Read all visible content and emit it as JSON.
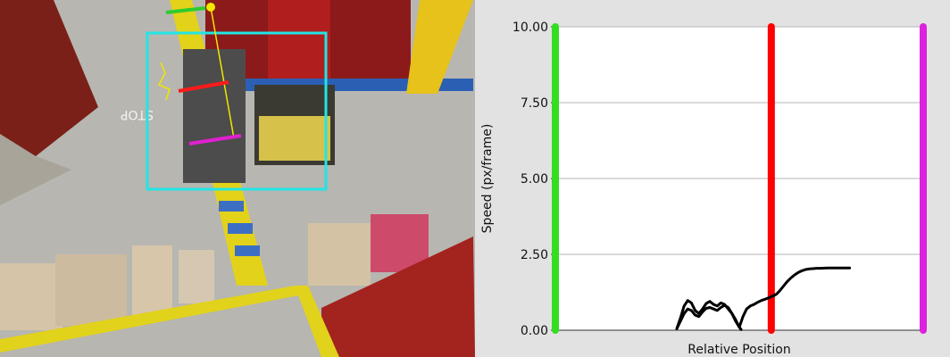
{
  "camera": {
    "floor_text": "STOP",
    "roi_color": "#22e5e5",
    "marker_colors": [
      "#2ecc2e",
      "#ff1a1a",
      "#e020d0",
      "#f2e600"
    ]
  },
  "chart_data": {
    "type": "line",
    "title": "",
    "xlabel": "Relative Position",
    "ylabel": "Speed (px/frame)",
    "ylim": [
      0,
      10
    ],
    "xlim": [
      0,
      1
    ],
    "yticks": [
      "0.00",
      "2.50",
      "5.00",
      "7.50",
      "10.00"
    ],
    "ytick_values": [
      0,
      2.5,
      5,
      7.5,
      10
    ],
    "grid": true,
    "vertical_markers": [
      {
        "x": 0.0,
        "color": "#33dd22"
      },
      {
        "x": 0.587,
        "color": "#ff0000"
      },
      {
        "x": 1.0,
        "color": "#dd22dd"
      }
    ],
    "series": [
      {
        "color": "#000000",
        "x": [
          0.33,
          0.34,
          0.35,
          0.36,
          0.37,
          0.38,
          0.39,
          0.4,
          0.41,
          0.42,
          0.43,
          0.44,
          0.45,
          0.46,
          0.47,
          0.48,
          0.49,
          0.5,
          0.51,
          0.52,
          0.53,
          0.54,
          0.55,
          0.56,
          0.57,
          0.58,
          0.59,
          0.6,
          0.61,
          0.62,
          0.63,
          0.64,
          0.65,
          0.66,
          0.67,
          0.68,
          0.69,
          0.7,
          0.71,
          0.72,
          0.74,
          0.76,
          0.78,
          0.8
        ],
        "values": [
          0.05,
          0.4,
          0.8,
          0.98,
          0.9,
          0.65,
          0.55,
          0.7,
          0.88,
          0.95,
          0.85,
          0.8,
          0.9,
          0.85,
          0.7,
          0.55,
          0.35,
          0.1,
          0.45,
          0.7,
          0.8,
          0.85,
          0.92,
          0.98,
          1.02,
          1.07,
          1.12,
          1.18,
          1.3,
          1.45,
          1.6,
          1.72,
          1.82,
          1.9,
          1.96,
          2.0,
          2.02,
          2.03,
          2.04,
          2.04,
          2.05,
          2.05,
          2.05,
          2.05
        ]
      },
      {
        "color": "#000000",
        "x": [
          0.33,
          0.34,
          0.35,
          0.36,
          0.37,
          0.38,
          0.39,
          0.4,
          0.41,
          0.42,
          0.43,
          0.44,
          0.45,
          0.46,
          0.47,
          0.48,
          0.49,
          0.5,
          0.505
        ],
        "values": [
          0.05,
          0.3,
          0.55,
          0.7,
          0.65,
          0.5,
          0.45,
          0.6,
          0.72,
          0.75,
          0.7,
          0.65,
          0.75,
          0.82,
          0.75,
          0.55,
          0.3,
          0.1,
          0.02
        ]
      }
    ]
  }
}
